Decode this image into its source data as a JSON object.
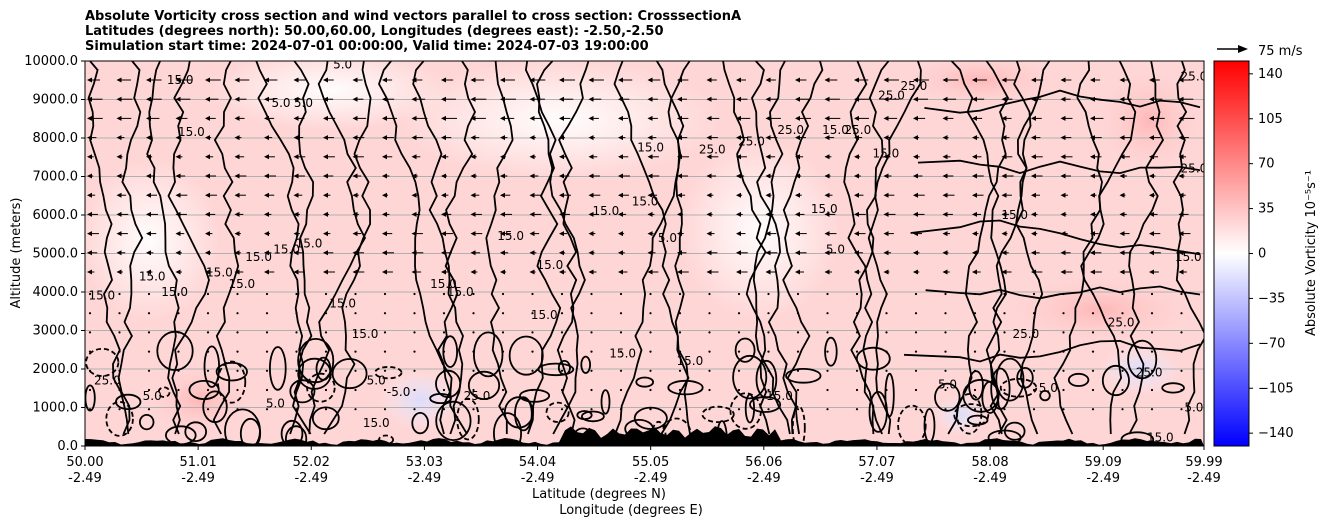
{
  "header": {
    "title_lines": [
      "Absolute Vorticity cross section and wind vectors parallel to cross section: CrosssectionA",
      "Latitudes (degrees north): 50.00,60.00, Longitudes (degrees east): -2.50,-2.50",
      "Simulation start time: 2024-07-01 00:00:00, Valid time: 2024-07-03 19:00:00"
    ]
  },
  "quiver_key": {
    "label": "75 m/s"
  },
  "chart_data": {
    "type": "heatmap",
    "plot_kind": "filled contour cross-section with contour lines and wind vectors",
    "ylabel": "Altitude (meters)",
    "xlabel_line1": "Latitude (degrees N)",
    "xlabel_line2": "Longitude (degrees E)",
    "ylim": [
      0,
      10000
    ],
    "xlim": [
      50.0,
      59.99
    ],
    "y_ticks": [
      "0.0",
      "1000.0",
      "2000.0",
      "3000.0",
      "4000.0",
      "5000.0",
      "6000.0",
      "7000.0",
      "8000.0",
      "9000.0",
      "10000.0"
    ],
    "y_tick_values": [
      0,
      1000,
      2000,
      3000,
      4000,
      5000,
      6000,
      7000,
      8000,
      9000,
      10000
    ],
    "x_ticks": [
      {
        "lat": "50.00",
        "lon": "-2.49",
        "value": 50.0
      },
      {
        "lat": "51.01",
        "lon": "-2.49",
        "value": 51.01
      },
      {
        "lat": "52.02",
        "lon": "-2.49",
        "value": 52.02
      },
      {
        "lat": "53.03",
        "lon": "-2.49",
        "value": 53.03
      },
      {
        "lat": "54.04",
        "lon": "-2.49",
        "value": 54.04
      },
      {
        "lat": "55.05",
        "lon": "-2.49",
        "value": 55.05
      },
      {
        "lat": "56.06",
        "lon": "-2.49",
        "value": 56.06
      },
      {
        "lat": "57.07",
        "lon": "-2.49",
        "value": 57.07
      },
      {
        "lat": "58.08",
        "lon": "-2.49",
        "value": 58.08
      },
      {
        "lat": "59.09",
        "lon": "-2.49",
        "value": 59.09
      },
      {
        "lat": "59.99",
        "lon": "-2.49",
        "value": 59.99
      }
    ],
    "grid": "horizontal",
    "colorbar": {
      "label": "Absolute Vorticity 10⁻⁵s⁻¹",
      "range": [
        -150,
        150
      ],
      "ticks": [
        "140",
        "105",
        "70",
        "35",
        "0",
        "−35",
        "−70",
        "−105",
        "−140"
      ],
      "tick_values": [
        140,
        105,
        70,
        35,
        0,
        -35,
        -70,
        -105,
        -140
      ],
      "colors": {
        "low": "#0000ff",
        "mid": "#ffffff",
        "high": "#ff0000"
      }
    },
    "contour_labels": [
      {
        "text": "15.0",
        "lat": 50.85,
        "alt": 9400
      },
      {
        "text": "15.0",
        "lat": 50.95,
        "alt": 8050
      },
      {
        "text": "5.0",
        "lat": 51.75,
        "alt": 8800
      },
      {
        "text": "5.0",
        "lat": 51.95,
        "alt": 8800
      },
      {
        "text": "5.0",
        "lat": 52.3,
        "alt": 9800
      },
      {
        "text": "15.0",
        "lat": 50.15,
        "alt": 3800
      },
      {
        "text": "15.0",
        "lat": 50.6,
        "alt": 4300
      },
      {
        "text": "15.0",
        "lat": 50.8,
        "alt": 3900
      },
      {
        "text": "15.0",
        "lat": 51.2,
        "alt": 4400
      },
      {
        "text": "15.0",
        "lat": 51.4,
        "alt": 4100
      },
      {
        "text": "15.0",
        "lat": 51.55,
        "alt": 4800
      },
      {
        "text": "15.0",
        "lat": 51.8,
        "alt": 5000
      },
      {
        "text": "15.0",
        "lat": 52.0,
        "alt": 5150
      },
      {
        "text": "15.0",
        "lat": 52.3,
        "alt": 3600
      },
      {
        "text": "15.0",
        "lat": 52.5,
        "alt": 2800
      },
      {
        "text": "15.0",
        "lat": 53.2,
        "alt": 4100
      },
      {
        "text": "15.0",
        "lat": 53.35,
        "alt": 3900
      },
      {
        "text": "15.0",
        "lat": 53.8,
        "alt": 5350
      },
      {
        "text": "15.0",
        "lat": 54.15,
        "alt": 4600
      },
      {
        "text": "15.0",
        "lat": 54.1,
        "alt": 3300
      },
      {
        "text": "15.0",
        "lat": 54.65,
        "alt": 6000
      },
      {
        "text": "15.0",
        "lat": 55.0,
        "alt": 6250
      },
      {
        "text": "15.0",
        "lat": 55.05,
        "alt": 7650
      },
      {
        "text": "25.0",
        "lat": 55.6,
        "alt": 7600
      },
      {
        "text": "25.0",
        "lat": 55.95,
        "alt": 7800
      },
      {
        "text": "25.0",
        "lat": 56.3,
        "alt": 8100
      },
      {
        "text": "15.0",
        "lat": 56.7,
        "alt": 8100
      },
      {
        "text": "25.0",
        "lat": 56.9,
        "alt": 8100
      },
      {
        "text": "25.0",
        "lat": 57.2,
        "alt": 9000
      },
      {
        "text": "25.0",
        "lat": 57.4,
        "alt": 9250
      },
      {
        "text": "15.0",
        "lat": 57.15,
        "alt": 7500
      },
      {
        "text": "5.0",
        "lat": 55.2,
        "alt": 5300
      },
      {
        "text": "5.0",
        "lat": 56.7,
        "alt": 5000
      },
      {
        "text": "15.0",
        "lat": 56.6,
        "alt": 6050
      },
      {
        "text": "15.0",
        "lat": 58.3,
        "alt": 5900
      },
      {
        "text": "25.0",
        "lat": 59.9,
        "alt": 9500
      },
      {
        "text": "25.0",
        "lat": 59.9,
        "alt": 7100
      },
      {
        "text": "15.0",
        "lat": 59.85,
        "alt": 4800
      },
      {
        "text": "25.0",
        "lat": 58.4,
        "alt": 2800
      },
      {
        "text": "25.0",
        "lat": 59.25,
        "alt": 3100
      },
      {
        "text": "5.0",
        "lat": 50.6,
        "alt": 1200
      },
      {
        "text": "25.0",
        "lat": 50.2,
        "alt": 1600
      },
      {
        "text": "5.0",
        "lat": 52.6,
        "alt": 1600
      },
      {
        "text": "25.0",
        "lat": 53.5,
        "alt": 1200
      },
      {
        "text": "15.0",
        "lat": 54.8,
        "alt": 2300
      },
      {
        "text": "15.0",
        "lat": 55.4,
        "alt": 2100
      },
      {
        "text": "5.0",
        "lat": 57.7,
        "alt": 1500
      },
      {
        "text": "15.0",
        "lat": 56.2,
        "alt": 1200
      },
      {
        "text": "25.0",
        "lat": 59.5,
        "alt": 1800
      },
      {
        "text": "5.0",
        "lat": 58.6,
        "alt": 1400
      },
      {
        "text": "15.0",
        "lat": 59.6,
        "alt": 120
      },
      {
        "text": "5.0",
        "lat": 59.9,
        "alt": 900
      },
      {
        "text": "15.0",
        "lat": 52.6,
        "alt": 500
      },
      {
        "text": "5.0",
        "lat": 51.7,
        "alt": 1000
      },
      {
        "text": "-5.0",
        "lat": 52.8,
        "alt": 1300
      }
    ]
  }
}
